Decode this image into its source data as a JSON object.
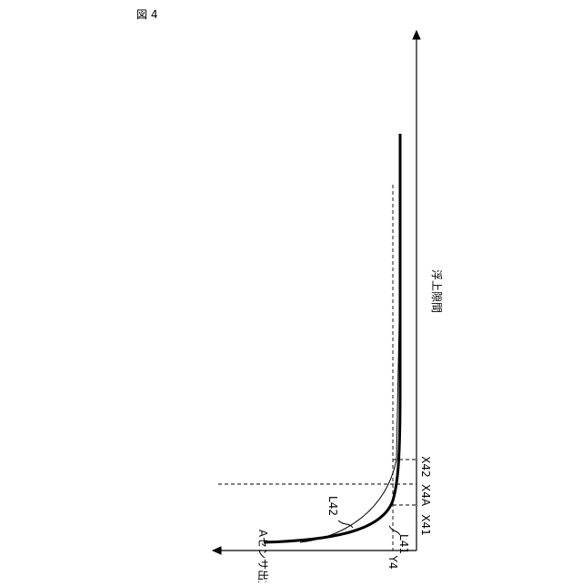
{
  "figure_label": "図 4",
  "axes": {
    "vertical_label": "浮上隙間",
    "horizontal_label": "Aセンサ出力"
  },
  "markers": {
    "x41": "X41",
    "x4a": "X4A",
    "x42": "X42",
    "y4": "Y4"
  },
  "curves": {
    "l41": "L41",
    "l42": "L42"
  }
}
